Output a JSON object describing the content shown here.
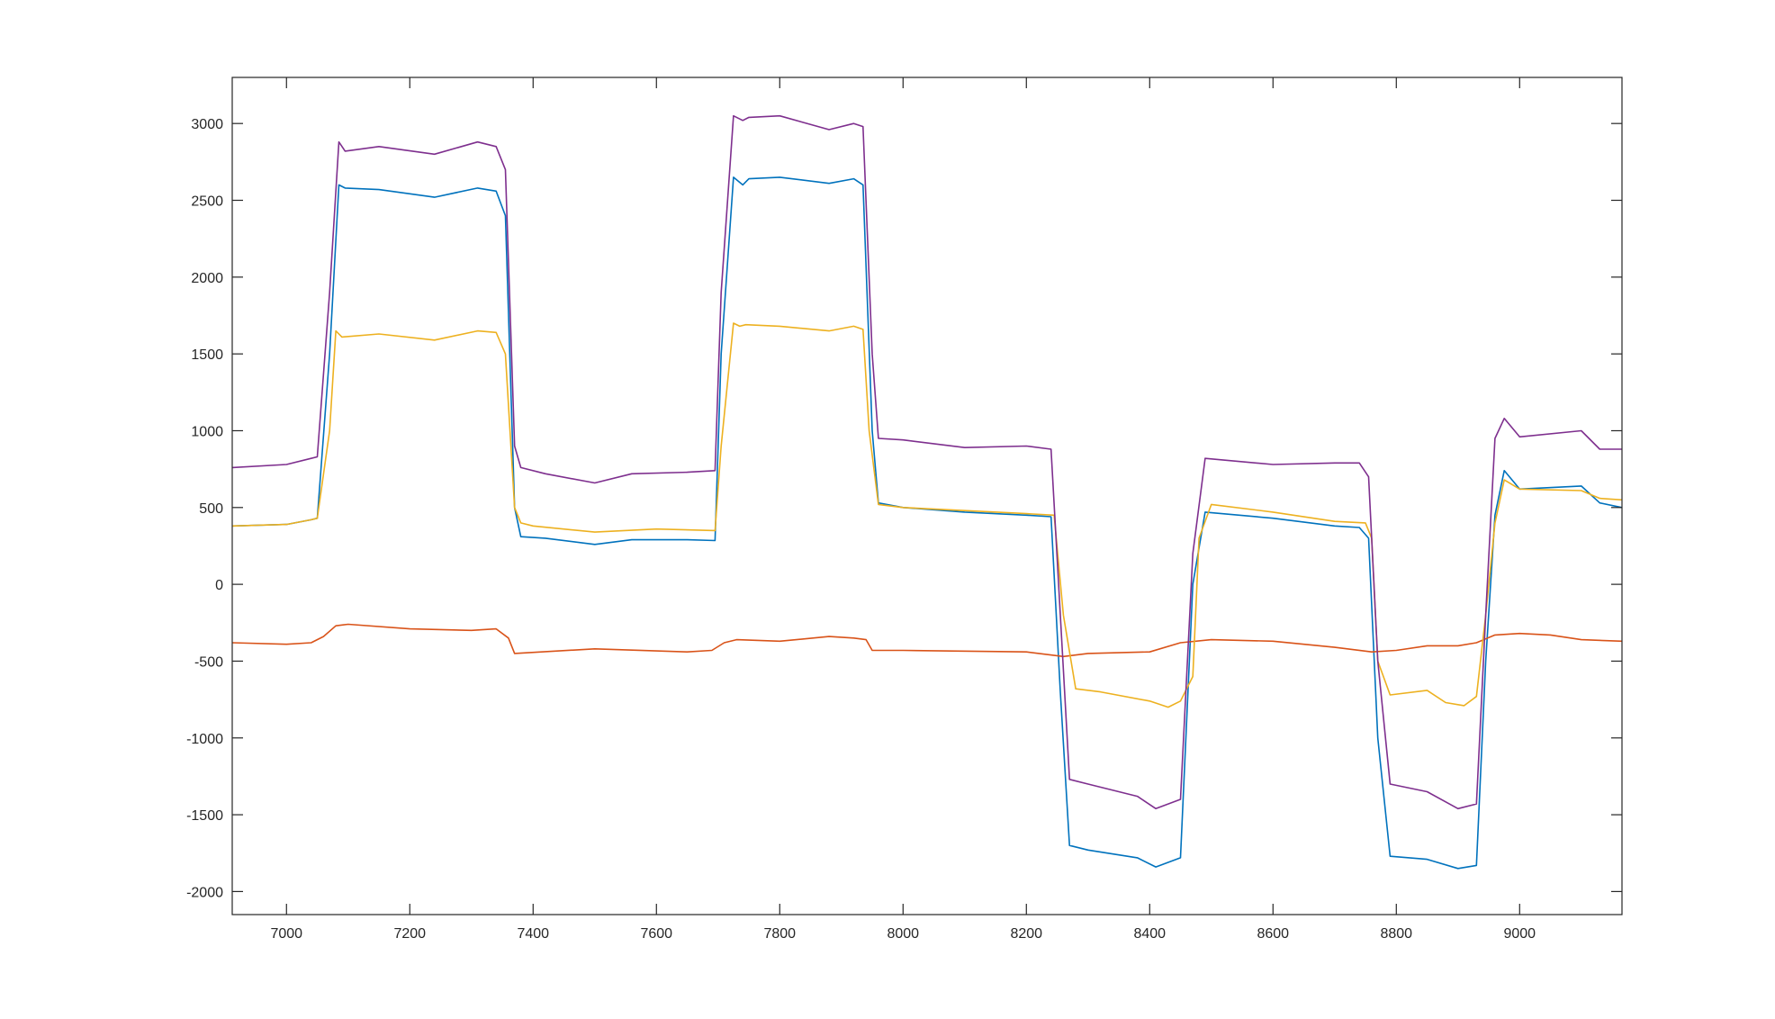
{
  "chart_data": {
    "type": "line",
    "title": "",
    "xlabel": "",
    "ylabel": "",
    "xlim": [
      6912,
      9166
    ],
    "ylim": [
      -2150,
      3300
    ],
    "grid": false,
    "legend": "none",
    "x_ticks": [
      7000,
      7200,
      7400,
      7600,
      7800,
      8000,
      8200,
      8400,
      8600,
      8800,
      9000
    ],
    "x_tick_labels": [
      "7000",
      "7200",
      "7400",
      "7600",
      "7800",
      "8000",
      "8200",
      "8400",
      "8600",
      "8800",
      "9000"
    ],
    "y_ticks": [
      -2000,
      -1500,
      -1000,
      -500,
      0,
      500,
      1000,
      1500,
      2000,
      2500,
      3000
    ],
    "y_tick_labels": [
      "-2000",
      "-1500",
      "-1000",
      "-500",
      "0",
      "500",
      "1000",
      "1500",
      "2000",
      "2500",
      "3000"
    ],
    "series": [
      {
        "color": "#0072BD",
        "x": [
          6912,
          7000,
          7040,
          7050,
          7070,
          7085,
          7095,
          7150,
          7240,
          7310,
          7340,
          7355,
          7370,
          7380,
          7420,
          7500,
          7560,
          7650,
          7695,
          7705,
          7725,
          7740,
          7750,
          7800,
          7880,
          7920,
          7935,
          7950,
          7960,
          8000,
          8100,
          8200,
          8240,
          8255,
          8270,
          8300,
          8380,
          8410,
          8450,
          8470,
          8490,
          8600,
          8700,
          8740,
          8755,
          8770,
          8790,
          8850,
          8900,
          8930,
          8945,
          8960,
          8975,
          9000,
          9100,
          9130,
          9166
        ],
        "y": [
          380,
          390,
          420,
          430,
          1500,
          2600,
          2580,
          2570,
          2520,
          2580,
          2560,
          2400,
          500,
          310,
          300,
          260,
          290,
          290,
          285,
          1500,
          2650,
          2600,
          2640,
          2650,
          2610,
          2640,
          2600,
          1000,
          530,
          500,
          470,
          450,
          440,
          -700,
          -1700,
          -1730,
          -1780,
          -1840,
          -1780,
          0,
          470,
          430,
          380,
          370,
          300,
          -1000,
          -1770,
          -1790,
          -1850,
          -1830,
          -500,
          450,
          740,
          620,
          640,
          530,
          500
        ]
      },
      {
        "color": "#D95319",
        "x": [
          6912,
          7000,
          7040,
          7060,
          7080,
          7100,
          7200,
          7300,
          7340,
          7360,
          7370,
          7500,
          7650,
          7690,
          7710,
          7730,
          7800,
          7880,
          7920,
          7940,
          7950,
          8000,
          8200,
          8260,
          8300,
          8400,
          8450,
          8500,
          8600,
          8700,
          8760,
          8800,
          8850,
          8900,
          8930,
          8960,
          9000,
          9050,
          9100,
          9166
        ],
        "y": [
          -380,
          -390,
          -380,
          -340,
          -270,
          -260,
          -290,
          -300,
          -290,
          -350,
          -450,
          -420,
          -440,
          -430,
          -380,
          -360,
          -370,
          -340,
          -350,
          -360,
          -430,
          -430,
          -440,
          -470,
          -450,
          -440,
          -380,
          -360,
          -370,
          -410,
          -440,
          -430,
          -400,
          -400,
          -380,
          -330,
          -320,
          -330,
          -360,
          -370
        ]
      },
      {
        "color": "#EDB120",
        "x": [
          6912,
          7000,
          7040,
          7050,
          7070,
          7080,
          7090,
          7150,
          7240,
          7310,
          7340,
          7355,
          7370,
          7380,
          7400,
          7500,
          7600,
          7695,
          7705,
          7725,
          7735,
          7745,
          7800,
          7880,
          7920,
          7935,
          7945,
          7960,
          8000,
          8100,
          8200,
          8245,
          8260,
          8280,
          8320,
          8400,
          8430,
          8450,
          8470,
          8480,
          8500,
          8600,
          8700,
          8750,
          8760,
          8770,
          8790,
          8850,
          8880,
          8910,
          8930,
          8945,
          8960,
          8975,
          9000,
          9100,
          9130,
          9166
        ],
        "y": [
          380,
          390,
          420,
          430,
          1000,
          1650,
          1610,
          1630,
          1590,
          1650,
          1640,
          1500,
          500,
          400,
          380,
          340,
          360,
          350,
          900,
          1700,
          1680,
          1690,
          1680,
          1650,
          1680,
          1660,
          1000,
          520,
          500,
          480,
          460,
          450,
          -200,
          -680,
          -700,
          -760,
          -800,
          -760,
          -600,
          300,
          520,
          470,
          410,
          400,
          300,
          -500,
          -720,
          -690,
          -770,
          -790,
          -730,
          -200,
          400,
          680,
          620,
          610,
          560,
          550
        ]
      },
      {
        "color": "#7E2F8E",
        "x": [
          6912,
          7000,
          7040,
          7050,
          7070,
          7085,
          7095,
          7150,
          7240,
          7310,
          7340,
          7355,
          7370,
          7380,
          7420,
          7500,
          7560,
          7650,
          7695,
          7705,
          7725,
          7740,
          7750,
          7800,
          7880,
          7920,
          7935,
          7950,
          7960,
          8000,
          8100,
          8200,
          8240,
          8255,
          8270,
          8300,
          8380,
          8410,
          8450,
          8470,
          8490,
          8600,
          8700,
          8740,
          8755,
          8770,
          8790,
          8850,
          8900,
          8930,
          8945,
          8960,
          8975,
          9000,
          9100,
          9130,
          9166
        ],
        "y": [
          760,
          780,
          820,
          830,
          1900,
          2880,
          2820,
          2850,
          2800,
          2880,
          2850,
          2700,
          900,
          760,
          720,
          660,
          720,
          730,
          740,
          1900,
          3050,
          3020,
          3040,
          3050,
          2960,
          3000,
          2980,
          1500,
          950,
          940,
          890,
          900,
          880,
          -200,
          -1270,
          -1300,
          -1380,
          -1460,
          -1400,
          200,
          820,
          780,
          790,
          790,
          700,
          -500,
          -1300,
          -1350,
          -1460,
          -1430,
          -200,
          950,
          1080,
          960,
          1000,
          880,
          880
        ]
      }
    ]
  }
}
